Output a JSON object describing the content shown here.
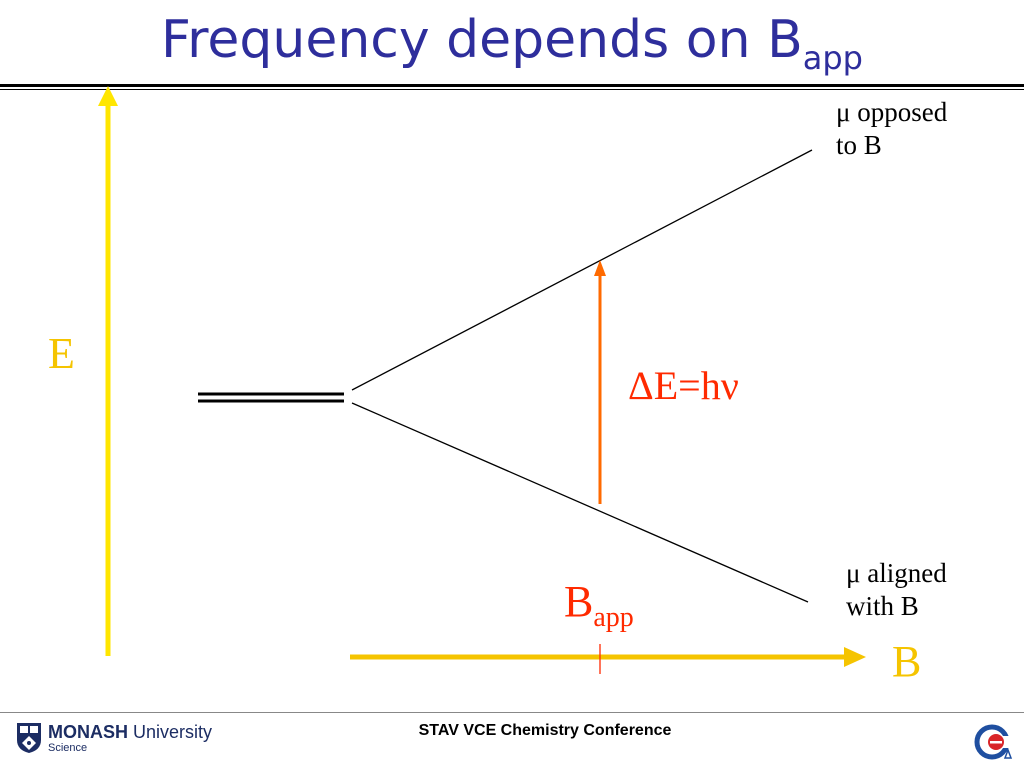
{
  "title": {
    "main": "Frequency depends on B",
    "sub": "app"
  },
  "diagram": {
    "energy_axis_label": "E",
    "field_axis_label": "B",
    "transition_label": "ΔE=hν",
    "applied_field_label": "B",
    "applied_field_sub": "app",
    "upper_level": {
      "line1": "μ opposed",
      "line2": "to B"
    },
    "lower_level": {
      "line1": "μ aligned",
      "line2": "with B"
    }
  },
  "footer": {
    "conference": "STAV VCE Chemistry Conference",
    "logo_main_bold": "MONASH",
    "logo_main_rest": " University",
    "logo_sub": "Science"
  },
  "colors": {
    "title": "#2e2e9c",
    "axis": "#ffe600",
    "axis_horizontal": "#f5c400",
    "transition": "#ff6a00",
    "label_red": "#ff2a00"
  },
  "icons": {
    "monash_logo": "monash-crest-icon",
    "cea_logo": "cea-logo-icon"
  }
}
